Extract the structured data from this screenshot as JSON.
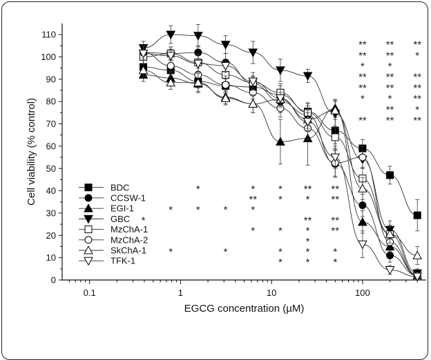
{
  "chart_data": {
    "type": "line",
    "xlabel": "EGCG concentration (µM)",
    "ylabel": "Cell viability (% control)",
    "x_scale": "log",
    "xlim": [
      0.05,
      500
    ],
    "ylim": [
      0,
      115
    ],
    "x_ticks": [
      0.1,
      1,
      10,
      100
    ],
    "x_tick_labels": [
      "0.1",
      "1",
      "10",
      "100"
    ],
    "y_ticks": [
      0,
      10,
      20,
      30,
      40,
      50,
      60,
      70,
      80,
      90,
      100,
      110
    ],
    "y_tick_labels": [
      "0",
      "10",
      "20",
      "30",
      "40",
      "50",
      "60",
      "70",
      "80",
      "90",
      "100",
      "110"
    ],
    "x": [
      0.39,
      0.78,
      1.56,
      3.125,
      6.25,
      12.5,
      25,
      50,
      100,
      200,
      400
    ],
    "series": [
      {
        "name": "BDC",
        "marker": "square-filled",
        "values": [
          95.5,
          94,
          89,
          87,
          86.5,
          83,
          75.5,
          67,
          59,
          47,
          29
        ],
        "err": [
          3,
          3,
          3,
          3,
          3,
          4,
          4,
          6,
          4,
          4,
          7
        ]
      },
      {
        "name": "CCSW-1",
        "marker": "circle-filled",
        "values": [
          102,
          101.5,
          102,
          97.5,
          88,
          80,
          74,
          52,
          33.5,
          11,
          2
        ],
        "err": [
          3,
          3,
          3,
          4,
          3,
          5,
          4,
          6,
          5,
          3,
          1
        ]
      },
      {
        "name": "EGI-1",
        "marker": "triangle-up-filled",
        "values": [
          92,
          90.5,
          88,
          82,
          79,
          62,
          63.5,
          77,
          26,
          15,
          2
        ],
        "err": [
          3,
          3,
          4,
          3,
          4,
          10,
          12,
          4,
          5,
          3,
          1
        ]
      },
      {
        "name": "GBC",
        "marker": "triangle-down-filled",
        "values": [
          104,
          110,
          109.5,
          105.5,
          102,
          94,
          91.5,
          74.5,
          54,
          22.5,
          3
        ],
        "err": [
          3,
          4,
          5,
          4,
          5,
          5,
          3,
          6,
          4,
          4,
          2
        ]
      },
      {
        "name": "MzChA-1",
        "marker": "square-open",
        "values": [
          100,
          101.5,
          97.5,
          92,
          88.5,
          84,
          75,
          64,
          45.5,
          20.5,
          2
        ],
        "err": [
          3,
          3,
          4,
          3,
          3,
          4,
          4,
          5,
          5,
          4,
          1
        ]
      },
      {
        "name": "MzChA-2",
        "marker": "circle-open",
        "values": [
          102,
          96,
          92,
          87.5,
          84,
          77,
          68,
          52.5,
          55,
          17,
          2
        ],
        "err": [
          3,
          3,
          3,
          4,
          3,
          4,
          5,
          6,
          5,
          4,
          1
        ]
      },
      {
        "name": "SkChA-1",
        "marker": "triangle-up-open",
        "values": [
          94,
          88.5,
          88.5,
          81.5,
          79,
          81,
          72,
          76,
          41,
          20.5,
          11
        ],
        "err": [
          3,
          3,
          4,
          3,
          4,
          3,
          4,
          4,
          5,
          4,
          4
        ]
      },
      {
        "name": "TFK-1",
        "marker": "triangle-down-open",
        "values": [
          101.5,
          100.5,
          97,
          96,
          89,
          81.5,
          71,
          55,
          16,
          4.5,
          1.5
        ],
        "err": [
          3,
          3,
          4,
          3,
          4,
          4,
          4,
          5,
          6,
          2,
          1
        ]
      }
    ],
    "significance_bottom": [
      {
        "series": "BDC",
        "marks": [
          {
            "x": 1.56,
            "text": "*"
          },
          {
            "x": 6.25,
            "text": "*"
          },
          {
            "x": 12.5,
            "text": "*"
          },
          {
            "x": 25,
            "text": "**"
          },
          {
            "x": 50,
            "text": "**"
          }
        ]
      },
      {
        "series": "CCSW-1",
        "marks": [
          {
            "x": 6.25,
            "text": "**"
          },
          {
            "x": 12.5,
            "text": "*"
          },
          {
            "x": 25,
            "text": "*"
          },
          {
            "x": 50,
            "text": "**"
          }
        ]
      },
      {
        "series": "EGI-1",
        "marks": [
          {
            "x": 0.78,
            "text": "*"
          },
          {
            "x": 1.56,
            "text": "*"
          },
          {
            "x": 3.125,
            "text": "*"
          },
          {
            "x": 6.25,
            "text": "*"
          }
        ]
      },
      {
        "series": "GBC",
        "marks": [
          {
            "x": 0.39,
            "text": "*"
          },
          {
            "x": 25,
            "text": "**"
          },
          {
            "x": 50,
            "text": "**"
          }
        ]
      },
      {
        "series": "MzChA-1",
        "marks": [
          {
            "x": 6.25,
            "text": "*"
          },
          {
            "x": 12.5,
            "text": "*"
          },
          {
            "x": 25,
            "text": "*"
          },
          {
            "x": 50,
            "text": "**"
          }
        ]
      },
      {
        "series": "MzChA-2",
        "marks": [
          {
            "x": 25,
            "text": "*"
          }
        ]
      },
      {
        "series": "SkChA-1",
        "marks": [
          {
            "x": 0.78,
            "text": "*"
          },
          {
            "x": 3.125,
            "text": "*"
          },
          {
            "x": 12.5,
            "text": "*"
          },
          {
            "x": 25,
            "text": "*"
          },
          {
            "x": 50,
            "text": "*"
          }
        ]
      },
      {
        "series": "TFK-1",
        "marks": [
          {
            "x": 12.5,
            "text": "*"
          },
          {
            "x": 25,
            "text": "*"
          },
          {
            "x": 50,
            "text": "*"
          }
        ]
      }
    ],
    "significance_top": {
      "x": [
        100,
        200,
        400
      ],
      "rows": [
        [
          "**",
          "**",
          "**"
        ],
        [
          "**",
          "**",
          "*"
        ],
        [
          "*",
          "*",
          ""
        ],
        [
          "**",
          "**",
          "**"
        ],
        [
          "**",
          "**",
          "**"
        ],
        [
          "*",
          "*",
          "**"
        ],
        [
          "",
          "**",
          "*"
        ],
        [
          "**",
          "**",
          "**"
        ]
      ]
    }
  }
}
